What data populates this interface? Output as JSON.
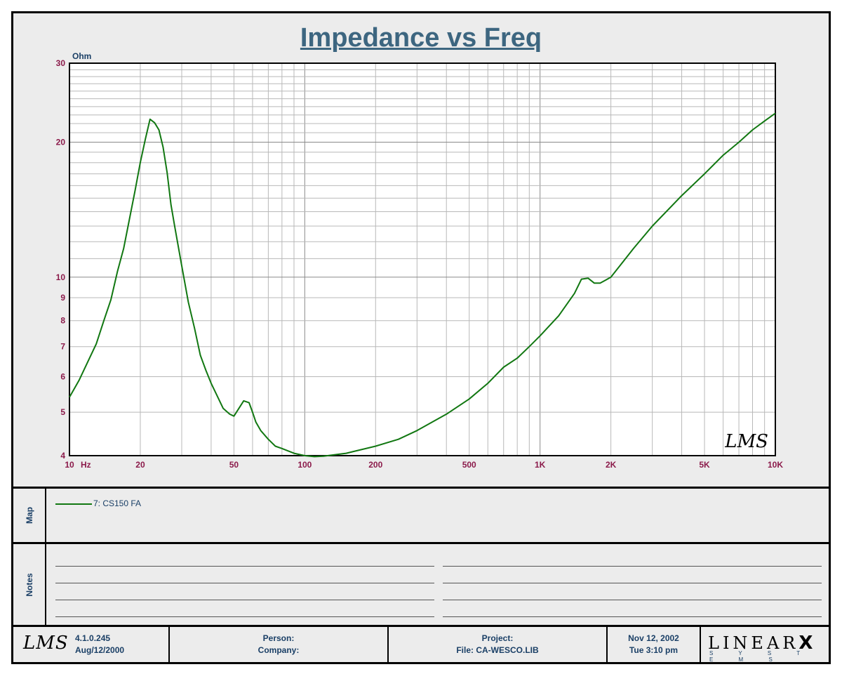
{
  "chart_data": {
    "type": "line",
    "title": "Impedance vs Freq",
    "ylabel": "Ohm",
    "xlabel": "Hz",
    "x_scale": "log",
    "y_scale": "log",
    "xlim": [
      10,
      10000
    ],
    "ylim": [
      4,
      30
    ],
    "grid": true,
    "x_tick_labels": [
      {
        "value": 10,
        "label": "10"
      },
      {
        "value": 20,
        "label": "20"
      },
      {
        "value": 50,
        "label": "50"
      },
      {
        "value": 100,
        "label": "100"
      },
      {
        "value": 200,
        "label": "200"
      },
      {
        "value": 500,
        "label": "500"
      },
      {
        "value": 1000,
        "label": "1K"
      },
      {
        "value": 2000,
        "label": "2K"
      },
      {
        "value": 5000,
        "label": "5K"
      },
      {
        "value": 10000,
        "label": "10K"
      }
    ],
    "y_tick_labels": [
      {
        "value": 4,
        "label": "4"
      },
      {
        "value": 5,
        "label": "5"
      },
      {
        "value": 6,
        "label": "6"
      },
      {
        "value": 7,
        "label": "7"
      },
      {
        "value": 8,
        "label": "8"
      },
      {
        "value": 9,
        "label": "9"
      },
      {
        "value": 10,
        "label": "10"
      },
      {
        "value": 20,
        "label": "20"
      },
      {
        "value": 30,
        "label": "30"
      }
    ],
    "series": [
      {
        "name": "7: CS150 FA",
        "color": "#117711",
        "x": [
          10,
          11,
          12,
          13,
          14,
          15,
          16,
          17,
          18,
          19,
          20,
          21,
          22,
          23,
          24,
          25,
          26,
          27,
          28,
          30,
          32,
          34,
          36,
          38,
          40,
          42,
          45,
          48,
          50,
          55,
          58,
          60,
          62,
          65,
          70,
          75,
          80,
          90,
          100,
          110,
          120,
          150,
          200,
          250,
          300,
          400,
          500,
          600,
          700,
          800,
          900,
          1000,
          1200,
          1400,
          1500,
          1600,
          1700,
          1800,
          1900,
          2000,
          2500,
          3000,
          4000,
          5000,
          6000,
          7000,
          8000,
          9000,
          10000
        ],
        "y": [
          5.4,
          5.9,
          6.5,
          7.1,
          8.0,
          8.9,
          10.3,
          11.6,
          13.5,
          15.6,
          18.0,
          20.3,
          22.5,
          22.1,
          21.3,
          19.5,
          17.1,
          14.5,
          13.0,
          10.6,
          8.8,
          7.7,
          6.7,
          6.2,
          5.8,
          5.5,
          5.1,
          4.95,
          4.9,
          5.3,
          5.25,
          5.0,
          4.75,
          4.55,
          4.35,
          4.2,
          4.15,
          4.05,
          4.0,
          3.98,
          3.99,
          4.05,
          4.2,
          4.35,
          4.55,
          4.95,
          5.35,
          5.8,
          6.3,
          6.6,
          7.0,
          7.4,
          8.2,
          9.2,
          9.9,
          9.95,
          9.7,
          9.7,
          9.85,
          10.0,
          11.6,
          13.0,
          15.2,
          17.0,
          18.7,
          20.0,
          21.3,
          22.3,
          23.2
        ]
      }
    ]
  },
  "watermark": "LMS",
  "map": {
    "label": "Map",
    "legend_entry": "7: CS150 FA"
  },
  "notes": {
    "label": "Notes"
  },
  "footer": {
    "logo": "LMS",
    "version": "4.1.0.245",
    "version_date": "Aug/12/2000",
    "person_label": "Person:",
    "company_label": "Company:",
    "project_label": "Project:",
    "file_label": "File: CA-WESCO.LIB",
    "date": "Nov 12, 2002",
    "time": "Tue  3:10 pm",
    "brand": "LINEAR",
    "brand_x": "X",
    "brand_sub": "S Y S T E M S"
  }
}
